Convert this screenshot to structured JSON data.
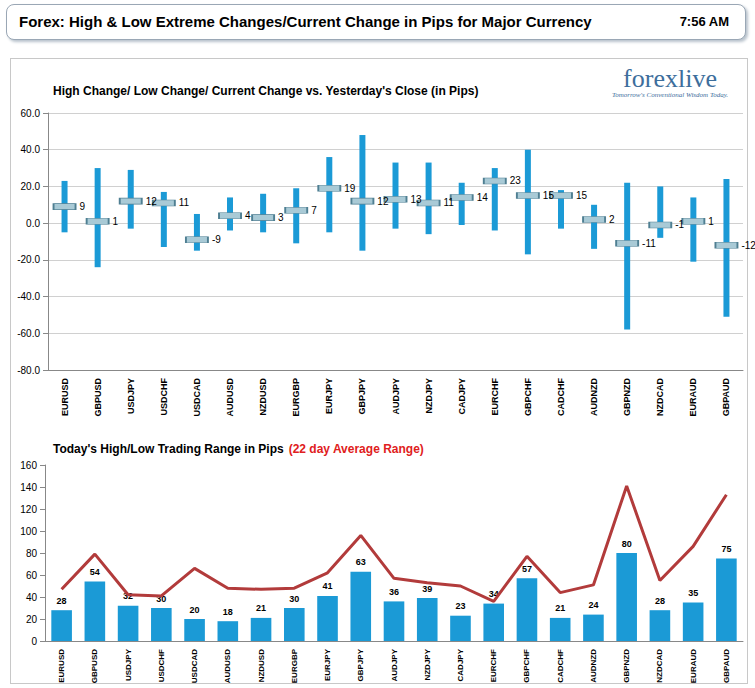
{
  "header": {
    "title": "Forex:  High & Low Extreme Changes/Current Change in Pips for Major Currency",
    "time": "7:56 AM",
    "logo": "forexlive",
    "tagline": "Tomorrow's Conventional Wisdom Today."
  },
  "chart_data": [
    {
      "type": "range",
      "title": "High Change/ Low Change/ Current Change vs. Yesterday's Close (in Pips)",
      "categories": [
        "EURUSD",
        "GBPUSD",
        "USDJPY",
        "USDCHF",
        "USDCAD",
        "AUDUSD",
        "NZDUSD",
        "EURGBP",
        "EURJPY",
        "GBPJPY",
        "AUDJPY",
        "NZDJPY",
        "CADJPY",
        "EURCHF",
        "GBPCHF",
        "CADCHF",
        "AUDNZD",
        "GBPNZD",
        "NZDCAD",
        "EURAUD",
        "GBPAUD"
      ],
      "series": [
        {
          "type": "range_bar",
          "color": "#1b9ad6",
          "low": [
            -5,
            -24,
            -3,
            -13,
            -15,
            -4,
            -5,
            -11,
            -5,
            -15,
            -3,
            -6,
            -1,
            -4,
            -17,
            -3,
            -14,
            -58,
            -8,
            -21,
            -51
          ],
          "high": [
            23,
            30,
            29,
            17,
            5,
            14,
            16,
            19,
            36,
            48,
            33,
            33,
            22,
            30,
            40,
            18,
            10,
            22,
            20,
            14,
            24
          ]
        },
        {
          "type": "marker",
          "color": "#a9cad6",
          "data_labels": true,
          "values": [
            9,
            1,
            12,
            11,
            -9,
            4,
            3,
            7,
            19,
            12,
            13,
            11,
            14,
            23,
            15,
            15,
            2,
            -11,
            -1,
            1,
            -12
          ]
        }
      ],
      "ylim": [
        -80,
        60
      ],
      "yticks": [
        {
          "value": -80,
          "label": "-80.0"
        },
        {
          "value": -60,
          "label": "-60.0"
        },
        {
          "value": -40,
          "label": "-40.0"
        },
        {
          "value": -20,
          "label": "-20.0"
        },
        {
          "value": 0,
          "label": "0.0"
        },
        {
          "value": 20,
          "label": "20.0"
        },
        {
          "value": 40,
          "label": "40.0"
        },
        {
          "value": 60,
          "label": "60.0"
        }
      ],
      "grid": true
    },
    {
      "type": "bar",
      "title": "Today's High/Low Trading Range in Pips",
      "subtitle": "(22 day Average Range)",
      "categories": [
        "EURUSD",
        "GBPUSD",
        "USDJPY",
        "USDCHF",
        "USDCAD",
        "AUDUSD",
        "NZDUSD",
        "EURGBP",
        "EURJPY",
        "GBPJPY",
        "AUDJPY",
        "NZDJPY",
        "CADJPY",
        "EURCHF",
        "GBPCHF",
        "CADCHF",
        "AUDNZD",
        "GBPNZD",
        "NZDCAD",
        "EURAUD",
        "GBPAUD"
      ],
      "series": [
        {
          "type": "bar",
          "color": "#1b9ad6",
          "data_labels": true,
          "values": [
            28,
            54,
            32,
            30,
            20,
            18,
            21,
            30,
            41,
            63,
            36,
            39,
            23,
            34,
            57,
            21,
            24,
            80,
            28,
            35,
            75
          ]
        },
        {
          "type": "line",
          "color": "#b23b3b",
          "values": [
            47,
            79,
            42,
            41,
            66,
            48,
            47,
            48,
            62,
            96,
            57,
            53,
            50,
            36,
            77,
            44,
            51,
            141,
            55,
            86,
            133
          ]
        }
      ],
      "ylim": [
        0,
        160
      ],
      "yticks": [
        0,
        20,
        40,
        60,
        80,
        100,
        120,
        140,
        160
      ],
      "grid": false
    }
  ]
}
